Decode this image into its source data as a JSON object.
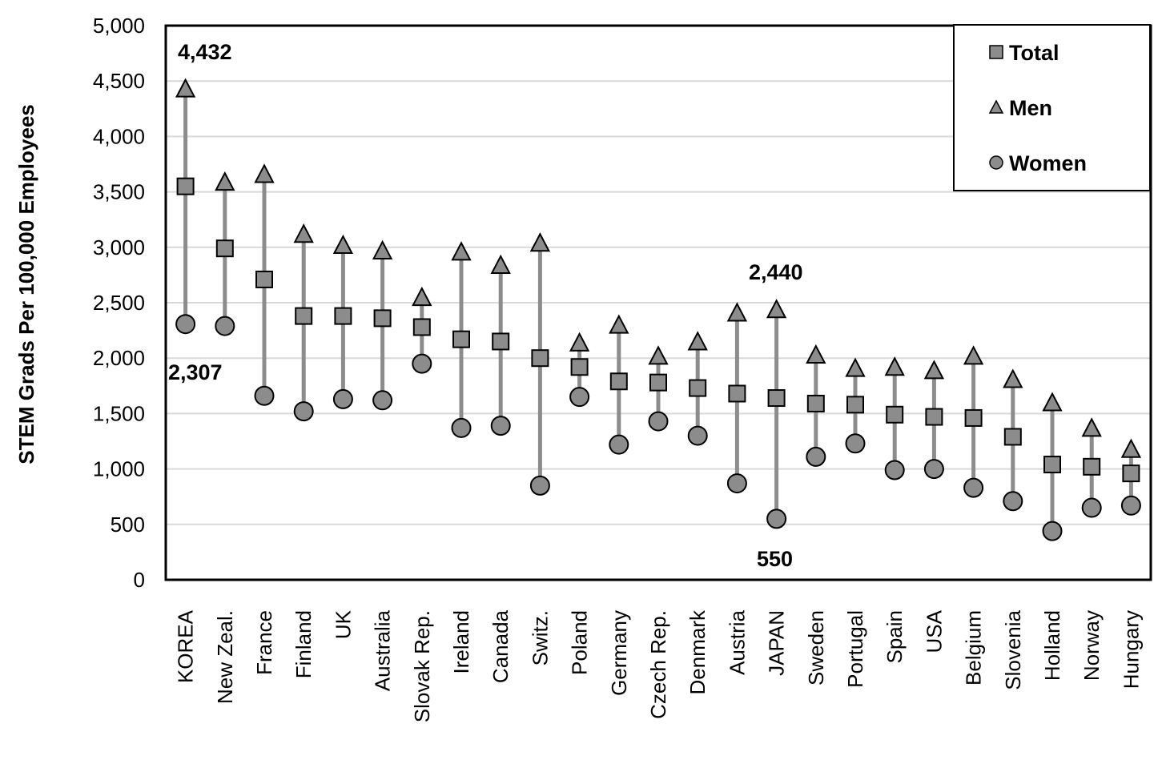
{
  "chart_data": {
    "type": "scatter",
    "ylabel": "STEM Grads Per 100,000 Employees",
    "xlabel": "",
    "ylim": [
      0,
      5000
    ],
    "yticks": [
      0,
      500,
      1000,
      1500,
      2000,
      2500,
      3000,
      3500,
      4000,
      4500,
      5000
    ],
    "ytick_labels": [
      "0",
      "500",
      "1,000",
      "1,500",
      "2,000",
      "2,500",
      "3,000",
      "3,500",
      "4,000",
      "4,500",
      "5,000"
    ],
    "grid": "horizontal",
    "legend_position": "top-right",
    "categories": [
      "KOREA",
      "New Zeal.",
      "France",
      "Finland",
      "UK",
      "Australia",
      "Slovak Rep.",
      "Ireland",
      "Canada",
      "Switz.",
      "Poland",
      "Germany",
      "Czech Rep.",
      "Denmark",
      "Austria",
      "JAPAN",
      "Sweden",
      "Portugal",
      "Spain",
      "USA",
      "Belgium",
      "Slovenia",
      "Holland",
      "Norway",
      "Hungary"
    ],
    "series": [
      {
        "name": "Total",
        "marker": "square",
        "values": [
          3550,
          2990,
          2710,
          2380,
          2380,
          2360,
          2280,
          2170,
          2150,
          2000,
          1920,
          1790,
          1780,
          1730,
          1680,
          1640,
          1590,
          1580,
          1490,
          1470,
          1460,
          1290,
          1040,
          1020,
          960
        ]
      },
      {
        "name": "Men",
        "marker": "triangle",
        "values": [
          4432,
          3590,
          3660,
          3120,
          3020,
          2970,
          2550,
          2960,
          2840,
          3040,
          2140,
          2300,
          2020,
          2150,
          2410,
          2440,
          2030,
          1910,
          1920,
          1890,
          2020,
          1810,
          1600,
          1370,
          1180
        ]
      },
      {
        "name": "Women",
        "marker": "circle",
        "values": [
          2307,
          2290,
          1660,
          1520,
          1630,
          1620,
          1950,
          1370,
          1390,
          850,
          1650,
          1220,
          1430,
          1300,
          870,
          550,
          1110,
          1230,
          990,
          1000,
          830,
          710,
          440,
          650,
          670
        ]
      }
    ],
    "annotations": [
      {
        "text": "4,432",
        "category": "KOREA"
      },
      {
        "text": "2,307",
        "category": "KOREA"
      },
      {
        "text": "2,440",
        "category": "JAPAN"
      },
      {
        "text": "550",
        "category": "JAPAN"
      }
    ]
  },
  "colors": {
    "marker_fill": "#8c8c8c",
    "range_line": "#8c8c8c",
    "grid": "#d9d9d9",
    "axis": "#000000"
  }
}
